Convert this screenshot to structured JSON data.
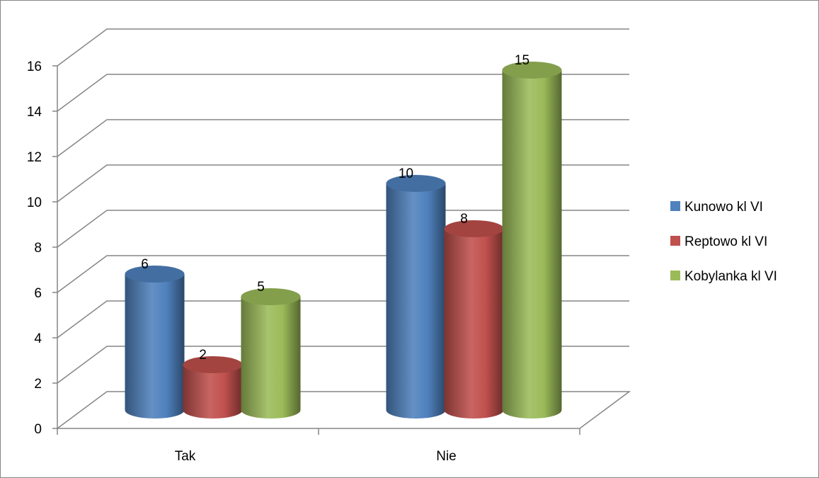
{
  "chart_data": {
    "type": "bar",
    "style": "3d-cylinder",
    "title": "",
    "xlabel": "",
    "ylabel": "",
    "categories": [
      "Tak",
      "Nie"
    ],
    "series": [
      {
        "name": "Kunowo kl VI",
        "values": [
          6,
          10
        ],
        "color": "#4F81BD"
      },
      {
        "name": "Reptowo kl VI",
        "values": [
          2,
          8
        ],
        "color": "#C0504D"
      },
      {
        "name": "Kobylanka kl VI",
        "values": [
          5,
          15
        ],
        "color": "#9BBB59"
      }
    ],
    "ylim": [
      0,
      16
    ],
    "yticks": [
      0,
      2,
      4,
      6,
      8,
      10,
      12,
      14,
      16
    ],
    "grid": true,
    "legend": "right",
    "data_labels": true
  }
}
